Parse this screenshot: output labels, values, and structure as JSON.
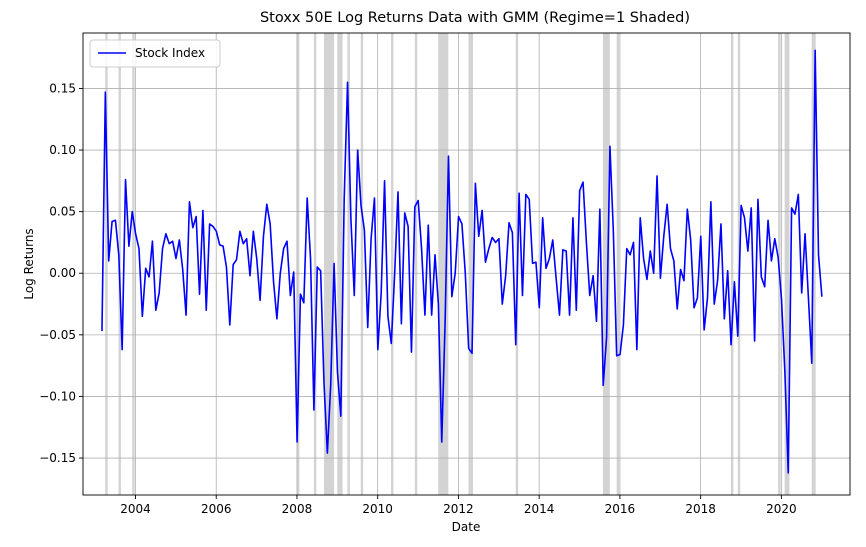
{
  "chart_data": {
    "type": "line",
    "title": "Stoxx 50E Log Returns Data with GMM (Regime=1 Shaded)",
    "xlabel": "Date",
    "ylabel": "Log Returns",
    "xlim": [
      2002.7,
      2021.7
    ],
    "ylim": [
      -0.18,
      0.195
    ],
    "grid": true,
    "legend": {
      "position": "top-left",
      "entries": [
        "Stock Index"
      ]
    },
    "x_ticks": [
      2004,
      2006,
      2008,
      2010,
      2012,
      2014,
      2016,
      2018,
      2020
    ],
    "x_tick_labels": [
      "2004",
      "2006",
      "2008",
      "2010",
      "2012",
      "2014",
      "2016",
      "2018",
      "2020"
    ],
    "y_ticks": [
      -0.15,
      -0.1,
      -0.05,
      0.0,
      0.05,
      0.1,
      0.15
    ],
    "y_tick_labels": [
      "−0.15",
      "−0.10",
      "−0.05",
      "0.00",
      "0.05",
      "0.10",
      "0.15"
    ],
    "series": [
      {
        "name": "Stock Index",
        "color": "#0000ff",
        "x_start": 2003.17,
        "x_step": 0.0833333,
        "values": [
          -0.047,
          0.147,
          0.01,
          0.042,
          0.043,
          0.015,
          -0.062,
          0.076,
          0.022,
          0.05,
          0.032,
          0.02,
          -0.035,
          0.004,
          -0.003,
          0.026,
          -0.03,
          -0.016,
          0.02,
          0.032,
          0.024,
          0.026,
          0.012,
          0.027,
          0.003,
          -0.034,
          0.058,
          0.037,
          0.046,
          -0.017,
          0.051,
          -0.03,
          0.04,
          0.038,
          0.034,
          0.023,
          0.022,
          0.005,
          -0.042,
          0.007,
          0.011,
          0.034,
          0.024,
          0.028,
          -0.002,
          0.034,
          0.012,
          -0.022,
          0.03,
          0.056,
          0.04,
          -0.007,
          -0.037,
          0.0,
          0.02,
          0.026,
          -0.018,
          0.001,
          -0.137,
          -0.017,
          -0.024,
          0.061,
          0.012,
          -0.111,
          0.005,
          0.002,
          -0.089,
          -0.146,
          -0.09,
          0.008,
          -0.08,
          -0.116,
          0.06,
          0.155,
          0.044,
          -0.018,
          0.1,
          0.055,
          0.035,
          -0.044,
          0.028,
          0.061,
          -0.062,
          -0.016,
          0.075,
          -0.035,
          -0.057,
          -0.001,
          0.066,
          -0.041,
          0.049,
          0.038,
          -0.064,
          0.054,
          0.059,
          0.02,
          -0.034,
          0.039,
          -0.034,
          0.015,
          -0.025,
          -0.137,
          -0.04,
          0.095,
          -0.019,
          0.0,
          0.046,
          0.04,
          0.0,
          -0.061,
          -0.065,
          0.073,
          0.03,
          0.051,
          0.009,
          0.02,
          0.029,
          0.025,
          0.028,
          -0.025,
          -0.002,
          0.041,
          0.033,
          -0.058,
          0.065,
          -0.018,
          0.064,
          0.06,
          0.008,
          0.009,
          -0.028,
          0.045,
          0.004,
          0.012,
          0.027,
          -0.004,
          -0.034,
          0.019,
          0.018,
          -0.034,
          0.045,
          -0.03,
          0.067,
          0.074,
          0.025,
          -0.018,
          -0.002,
          -0.039,
          0.052,
          -0.091,
          -0.052,
          0.103,
          0.035,
          -0.067,
          -0.066,
          -0.042,
          0.02,
          0.015,
          0.025,
          -0.062,
          0.045,
          0.012,
          -0.005,
          0.018,
          0.0,
          0.079,
          -0.004,
          0.03,
          0.056,
          0.02,
          0.01,
          -0.029,
          0.003,
          -0.006,
          0.052,
          0.027,
          -0.028,
          -0.02,
          0.03,
          -0.046,
          -0.02,
          0.058,
          -0.025,
          -0.006,
          0.04,
          -0.037,
          0.002,
          -0.058,
          -0.007,
          -0.051,
          0.055,
          0.045,
          0.018,
          0.053,
          -0.055,
          0.06,
          -0.003,
          -0.011,
          0.043,
          0.01,
          0.028,
          0.013,
          -0.021,
          -0.08,
          -0.162,
          0.053,
          0.048,
          0.064,
          -0.016,
          0.032,
          -0.02,
          -0.073,
          0.181,
          0.015,
          -0.019
        ]
      }
    ],
    "regime_1_shaded_spans": [
      [
        2003.25,
        2003.31
      ],
      [
        2003.58,
        2003.64
      ],
      [
        2003.92,
        2003.98
      ],
      [
        2008.0,
        2008.06
      ],
      [
        2008.42,
        2008.48
      ],
      [
        2008.67,
        2008.92
      ],
      [
        2009.0,
        2009.13
      ],
      [
        2009.25,
        2009.31
      ],
      [
        2009.58,
        2009.64
      ],
      [
        2010.33,
        2010.39
      ],
      [
        2010.92,
        2010.98
      ],
      [
        2011.5,
        2011.75
      ],
      [
        2012.25,
        2012.36
      ],
      [
        2013.42,
        2013.48
      ],
      [
        2015.58,
        2015.75
      ],
      [
        2015.92,
        2015.98
      ],
      [
        2018.75,
        2018.81
      ],
      [
        2018.92,
        2018.98
      ],
      [
        2019.92,
        2019.98
      ],
      [
        2020.08,
        2020.2
      ],
      [
        2020.75,
        2020.85
      ]
    ],
    "shade_color": "#d3d3d3"
  }
}
